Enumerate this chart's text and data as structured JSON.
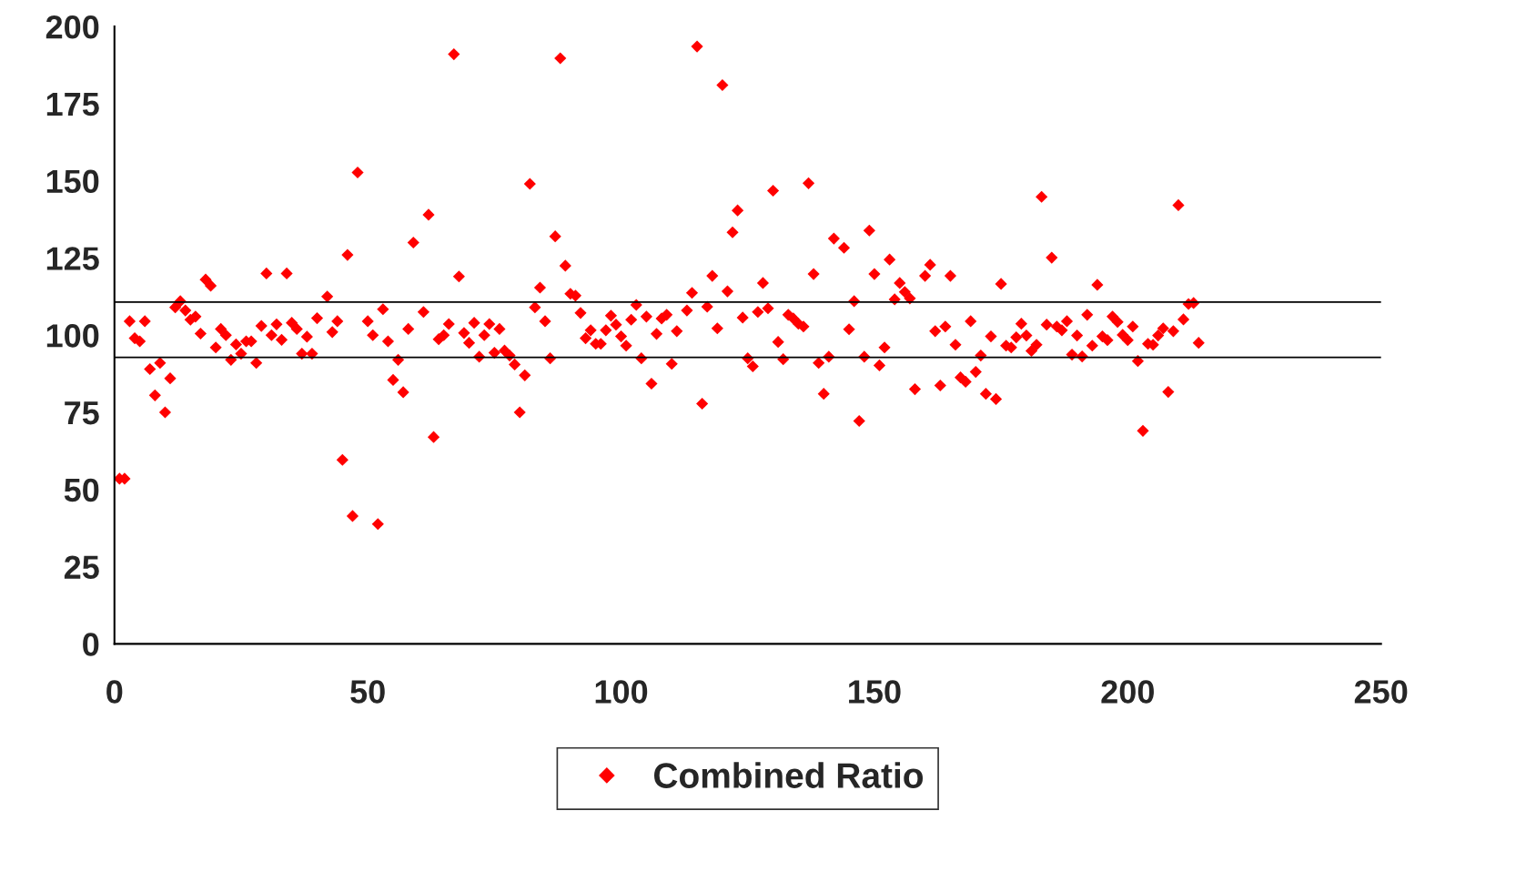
{
  "chart_data": {
    "type": "scatter",
    "xlim": [
      0,
      250
    ],
    "xticks": [
      0,
      50,
      100,
      150,
      200,
      250
    ],
    "ylim": [
      0,
      200
    ],
    "yticks": [
      0,
      25,
      50,
      75,
      100,
      125,
      150,
      175,
      200
    ],
    "grid": false,
    "legend": "bottom",
    "marker": "diamond",
    "series": [
      {
        "name": "Combined Ratio",
        "color": "#ff0000",
        "x": [
          1,
          2,
          3,
          4,
          5,
          6,
          7,
          8,
          9,
          10,
          11,
          12,
          13,
          14,
          15,
          16,
          17,
          18,
          19,
          20,
          21,
          22,
          23,
          24,
          25,
          26,
          27,
          28,
          29,
          30,
          31,
          32,
          33,
          34,
          35,
          36,
          37,
          38,
          39,
          40,
          42,
          43,
          44,
          45,
          46,
          47,
          48,
          50,
          51,
          52,
          53,
          54,
          55,
          56,
          57,
          58,
          59,
          61,
          62,
          63,
          64,
          65,
          66,
          67,
          68,
          69,
          70,
          71,
          72,
          73,
          74,
          75,
          76,
          77,
          78,
          79,
          80,
          81,
          82,
          83,
          84,
          85,
          86,
          87,
          88,
          89,
          90,
          91,
          92,
          93,
          94,
          95,
          96,
          97,
          98,
          99,
          100,
          101,
          102,
          103,
          104,
          105,
          106,
          107,
          108,
          109,
          110,
          111,
          113,
          114,
          115,
          116,
          117,
          118,
          119,
          120,
          121,
          122,
          123,
          124,
          125,
          126,
          127,
          128,
          129,
          130,
          131,
          132,
          133,
          134,
          135,
          136,
          137,
          138,
          139,
          140,
          141,
          142,
          144,
          145,
          146,
          147,
          148,
          149,
          150,
          151,
          152,
          153,
          154,
          155,
          156,
          157,
          158,
          160,
          161,
          162,
          163,
          164,
          165,
          166,
          167,
          168,
          169,
          170,
          171,
          172,
          173,
          174,
          175,
          176,
          177,
          178,
          179,
          180,
          181,
          182,
          183,
          184,
          185,
          186,
          187,
          188,
          189,
          190,
          191,
          192,
          193,
          194,
          195,
          196,
          197,
          198,
          199,
          200,
          201,
          202,
          203,
          204,
          205,
          206,
          207,
          208,
          209,
          210,
          211,
          212,
          213,
          214
        ],
        "values": [
          53.5,
          53.5,
          104.5,
          99,
          98,
          104.5,
          89,
          80.5,
          91,
          75,
          86,
          109,
          111,
          108,
          105,
          106,
          100.5,
          118,
          116,
          96,
          102,
          100,
          92,
          97,
          94,
          98,
          98,
          91,
          103,
          120,
          100,
          103.5,
          98.5,
          120,
          104,
          102,
          94,
          99.5,
          94,
          105.5,
          112.5,
          101,
          104.5,
          59.6,
          126,
          41.4,
          152.7,
          104.5,
          100,
          38.8,
          108.4,
          98,
          85.5,
          92,
          81.5,
          102,
          130,
          107.5,
          139,
          67,
          98.7,
          100,
          103.6,
          191,
          119,
          100.7,
          97.5,
          104,
          93,
          100,
          103.6,
          94.3,
          102,
          95,
          93.4,
          90.5,
          75,
          87,
          149,
          109,
          115.4,
          104.5,
          92.5,
          132,
          189.7,
          122.5,
          113.4,
          112.8,
          107.2,
          99,
          101.6,
          97.2,
          97.2,
          101.6,
          106.3,
          103.4,
          99.6,
          96.6,
          105,
          109.8,
          92.5,
          106,
          84.3,
          100.4,
          105.4,
          106.6,
          90.7,
          101.3,
          108,
          113.7,
          193.5,
          77.8,
          109.2,
          119.2,
          102.2,
          181,
          114.2,
          133.3,
          140.4,
          105.7,
          92.5,
          89.9,
          107.5,
          116.9,
          108.7,
          146.8,
          97.8,
          92.2,
          106.6,
          105.4,
          103.7,
          102.8,
          149.2,
          119.8,
          91,
          81,
          93,
          131.3,
          128.3,
          101.9,
          111,
          72.2,
          93,
          133.9,
          119.8,
          90.2,
          96,
          124.5,
          111.6,
          116.9,
          114,
          111.9,
          82.5,
          119.2,
          122.8,
          101.3,
          83.7,
          102.8,
          119.2,
          96.9,
          86.3,
          84.9,
          104.5,
          88.1,
          93.4,
          81,
          99.6,
          79.3,
          116.6,
          96.6,
          96,
          99.3,
          103.7,
          99.9,
          94.9,
          96.9,
          144.8,
          103.4,
          125.1,
          102.8,
          101.6,
          104.5,
          93.7,
          99.9,
          93.1,
          106.6,
          96.6,
          116.3,
          99.6,
          98.4,
          106,
          104.3,
          100.1,
          98.4,
          102.8,
          91.6,
          69,
          97.2,
          96.9,
          99.9,
          102.2,
          81.6,
          101.3,
          142.1,
          105.1,
          110.1,
          110.4,
          97.5
        ]
      }
    ],
    "ref_lines": [
      {
        "axis": "y",
        "value": 110.7,
        "color": "#000000"
      },
      {
        "axis": "y",
        "value": 92.8,
        "color": "#000000"
      }
    ]
  }
}
